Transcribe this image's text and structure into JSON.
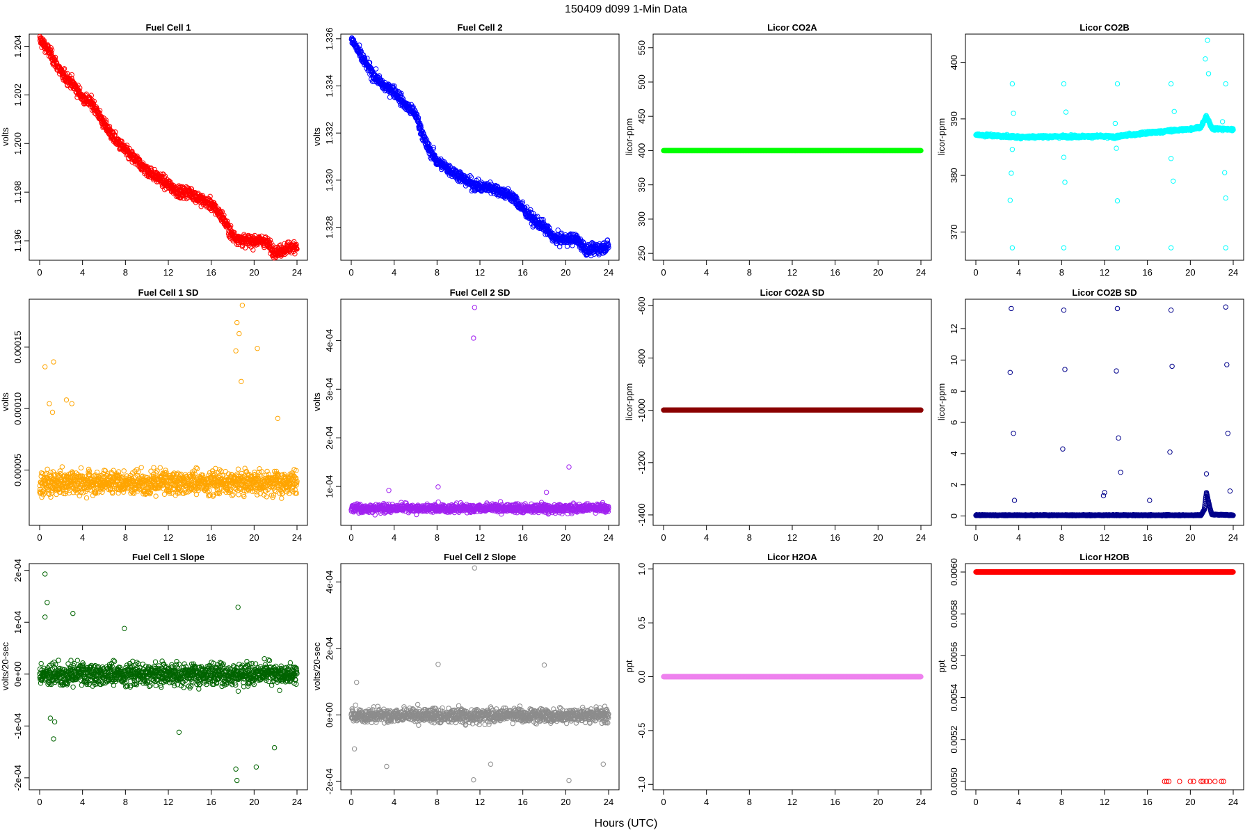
{
  "figure": {
    "suptitle": "150409    d099    1-Min Data",
    "xlabel": "Hours (UTC)"
  },
  "chart_data": [
    {
      "id": "fc1",
      "type": "scatter",
      "title": "Fuel Cell 1",
      "ylabel": "volts",
      "color": "#ff0000",
      "xlim": [
        0,
        24
      ],
      "ylim": [
        1.1952,
        1.2045
      ],
      "yticks": [
        1.196,
        1.198,
        1.2,
        1.202,
        1.204
      ],
      "ytick_labels": [
        "1.196",
        "1.198",
        "1.200",
        "1.202",
        "1.204"
      ],
      "series": [
        {
          "pattern": "trend",
          "x": [
            0,
            1,
            2,
            3,
            4,
            5,
            6,
            7,
            8,
            9,
            10,
            11,
            12,
            13,
            14,
            15,
            16,
            17,
            18,
            19,
            20,
            21,
            22,
            23,
            24
          ],
          "y": [
            1.2043,
            1.2037,
            1.2029,
            1.2025,
            1.2019,
            1.2016,
            1.2008,
            1.2002,
            1.1997,
            1.1993,
            1.1989,
            1.1986,
            1.1983,
            1.198,
            1.198,
            1.1977,
            1.1975,
            1.197,
            1.1962,
            1.196,
            1.196,
            1.196,
            1.1955,
            1.1957,
            1.1958
          ],
          "jitter": 0.00025
        }
      ]
    },
    {
      "id": "fc2",
      "type": "scatter",
      "title": "Fuel Cell 2",
      "ylabel": "volts",
      "color": "#0000ff",
      "xlim": [
        0,
        24
      ],
      "ylim": [
        1.3266,
        1.3362
      ],
      "yticks": [
        1.328,
        1.33,
        1.332,
        1.334,
        1.336
      ],
      "ytick_labels": [
        "1.328",
        "1.330",
        "1.332",
        "1.334",
        "1.336"
      ],
      "series": [
        {
          "pattern": "trend",
          "x": [
            0,
            1,
            2,
            3,
            4,
            5,
            6,
            7,
            8,
            9,
            10,
            11,
            12,
            13,
            14,
            15,
            16,
            17,
            18,
            19,
            20,
            21,
            22,
            23,
            24
          ],
          "y": [
            1.336,
            1.3352,
            1.3345,
            1.334,
            1.3338,
            1.3332,
            1.3328,
            1.3315,
            1.3308,
            1.3305,
            1.3302,
            1.3299,
            1.3297,
            1.3297,
            1.3295,
            1.3293,
            1.3288,
            1.3283,
            1.328,
            1.3275,
            1.3275,
            1.3275,
            1.327,
            1.3271,
            1.3272
          ],
          "jitter": 0.00025
        }
      ]
    },
    {
      "id": "co2a",
      "type": "scatter",
      "title": "Licor CO2A",
      "ylabel": "licor-ppm",
      "color": "#00ff00",
      "xlim": [
        0,
        24
      ],
      "ylim": [
        240,
        570
      ],
      "yticks": [
        250,
        300,
        350,
        400,
        450,
        500,
        550
      ],
      "ytick_labels": [
        "250",
        "300",
        "350",
        "400",
        "450",
        "500",
        "550"
      ],
      "series": [
        {
          "pattern": "flat",
          "value": 400
        }
      ]
    },
    {
      "id": "co2b",
      "type": "scatter",
      "title": "Licor CO2B",
      "ylabel": "licor-ppm",
      "color": "#00ffff",
      "xlim": [
        0,
        24
      ],
      "ylim": [
        365,
        405
      ],
      "yticks": [
        370,
        380,
        390,
        400
      ],
      "ytick_labels": [
        "370",
        "380",
        "390",
        "400"
      ],
      "series": [
        {
          "pattern": "trend",
          "x": [
            0,
            4,
            8,
            12,
            13,
            14,
            16,
            18,
            20,
            21,
            21.5,
            22,
            24
          ],
          "y": [
            387.2,
            386.8,
            386.9,
            386.9,
            386.8,
            387.1,
            387.5,
            387.9,
            388.2,
            388.6,
            390.5,
            388.3,
            388.1
          ],
          "jitter": 0.25
        },
        {
          "pattern": "points",
          "x": [
            3.4,
            3.4,
            3.4,
            3.3,
            3.2,
            3.5,
            8.2,
            8.2,
            8.2,
            8.3,
            8.4,
            13.2,
            13.2,
            13.2,
            13.0,
            13.1,
            18.2,
            18.2,
            18.2,
            18.4,
            18.5,
            23.3,
            23.3,
            23.3,
            23.2,
            23.0,
            21.6,
            21.7,
            21.4
          ],
          "y": [
            396.2,
            384.6,
            367.2,
            380.4,
            375.6,
            391.0,
            396.2,
            367.2,
            383.2,
            378.8,
            391.2,
            396.2,
            367.2,
            375.5,
            389.2,
            384.8,
            396.2,
            367.2,
            383.0,
            379.0,
            391.3,
            396.2,
            367.2,
            376.0,
            380.5,
            389.5,
            403.9,
            398.0,
            400.6
          ]
        }
      ]
    },
    {
      "id": "fc1sd",
      "type": "scatter",
      "title": "Fuel Cell 1 SD",
      "ylabel": "volts",
      "color": "#ffa500",
      "xlim": [
        0,
        24
      ],
      "ylim": [
        5e-06,
        0.000189
      ],
      "yticks": [
        5e-05,
        0.0001,
        0.00015
      ],
      "ytick_labels": [
        "0.00005",
        "0.00010",
        "0.00015"
      ],
      "series": [
        {
          "pattern": "noise",
          "base": 4e-05,
          "jitter": 1e-05
        },
        {
          "pattern": "points",
          "x": [
            0.5,
            1.3,
            0.9,
            3.0,
            2.5,
            1.2,
            18.9,
            18.4,
            18.6,
            20.3,
            18.3,
            18.8,
            22.2
          ],
          "y": [
            0.000134,
            0.000138,
            0.000104,
            0.000104,
            0.000107,
            9.7e-05,
            0.000184,
            0.00017,
            0.000161,
            0.000149,
            0.000147,
            0.000122,
            9.2e-05
          ]
        }
      ]
    },
    {
      "id": "fc2sd",
      "type": "scatter",
      "title": "Fuel Cell 2 SD",
      "ylabel": "volts",
      "color": "#a020f0",
      "xlim": [
        0,
        24
      ],
      "ylim": [
        2e-05,
        0.000485
      ],
      "yticks": [
        0.0001,
        0.0002,
        0.0003,
        0.0004
      ],
      "ytick_labels": [
        "1e-04",
        "2e-04",
        "3e-04",
        "4e-04"
      ],
      "series": [
        {
          "pattern": "noise",
          "base": 5.5e-05,
          "jitter": 9e-06
        },
        {
          "pattern": "points",
          "x": [
            11.5,
            11.4,
            20.3,
            8.1,
            3.5,
            18.2
          ],
          "y": [
            0.000468,
            0.000405,
            0.00014,
            9.9e-05,
            9.2e-05,
            8.8e-05
          ]
        }
      ]
    },
    {
      "id": "co2asd",
      "type": "scatter",
      "title": "Licor CO2A SD",
      "ylabel": "licor-ppm",
      "color": "#8b0000",
      "xlim": [
        0,
        24
      ],
      "ylim": [
        -1440,
        -575
      ],
      "yticks": [
        -1400,
        -1200,
        -1000,
        -800,
        -600
      ],
      "ytick_labels": [
        "-1400",
        "-1200",
        "-1000",
        "-800",
        "-600"
      ],
      "series": [
        {
          "pattern": "flat",
          "value": -999
        }
      ]
    },
    {
      "id": "co2bsd",
      "type": "scatter",
      "title": "Licor CO2B SD",
      "ylabel": "licor-ppm",
      "color": "#00008b",
      "xlim": [
        0,
        24
      ],
      "ylim": [
        -0.6,
        13.9
      ],
      "yticks": [
        0,
        2,
        4,
        6,
        8,
        10,
        12
      ],
      "ytick_labels": [
        "0",
        "2",
        "4",
        "6",
        "8",
        "10",
        "12"
      ],
      "series": [
        {
          "pattern": "trend",
          "x": [
            0,
            21,
            21.3,
            21.5,
            21.8,
            22,
            24
          ],
          "y": [
            0.05,
            0.05,
            0.4,
            1.5,
            0.6,
            0.1,
            0.05
          ],
          "jitter": 0.03
        },
        {
          "pattern": "points",
          "x": [
            3.3,
            3.2,
            3.5,
            3.6,
            8.2,
            8.3,
            8.1,
            13.2,
            13.1,
            13.3,
            13.5,
            18.2,
            18.3,
            18.1,
            23.3,
            23.4,
            23.5,
            23.7,
            12.0,
            11.9,
            16.2,
            21.5
          ],
          "y": [
            13.3,
            9.2,
            5.3,
            1.0,
            13.2,
            9.4,
            4.3,
            13.3,
            9.3,
            5.0,
            2.8,
            13.2,
            9.6,
            4.1,
            13.4,
            9.7,
            5.3,
            1.6,
            1.5,
            1.3,
            1.0,
            2.7
          ]
        }
      ]
    },
    {
      "id": "fc1slope",
      "type": "scatter",
      "title": "Fuel Cell 1 Slope",
      "ylabel": "volts/20-sec",
      "color": "#006400",
      "xlim": [
        0,
        24
      ],
      "ylim": [
        -0.000223,
        0.000213
      ],
      "yticks": [
        -0.0002,
        -0.0001,
        0,
        0.0001,
        0.0002
      ],
      "ytick_labels": [
        "-2e-04",
        "-1e-04",
        "0e+00",
        "1e-04",
        "2e-04"
      ],
      "series": [
        {
          "pattern": "noise",
          "base": 0,
          "jitter": 2.2e-05
        },
        {
          "pattern": "points",
          "x": [
            0.5,
            0.7,
            0.5,
            3.1,
            7.9,
            18.5,
            18.3,
            18.4,
            20.2,
            13.0,
            1.3,
            21.9,
            1.0,
            1.4
          ],
          "y": [
            0.000193,
            0.000138,
            0.00011,
            0.000117,
            8.8e-05,
            0.000129,
            -0.000183,
            -0.000205,
            -0.000179,
            -0.000112,
            -0.000125,
            -0.000142,
            -8.5e-05,
            -9.2e-05
          ]
        }
      ]
    },
    {
      "id": "fc2slope",
      "type": "scatter",
      "title": "Fuel Cell 2 Slope",
      "ylabel": "volts/20-sec",
      "color": "#8c8c8c",
      "xlim": [
        0,
        24
      ],
      "ylim": [
        -0.000225,
        0.000455
      ],
      "yticks": [
        -0.0002,
        0,
        0.0002,
        0.0004
      ],
      "ytick_labels": [
        "-2e-04",
        "0e+00",
        "2e-04",
        "4e-04"
      ],
      "series": [
        {
          "pattern": "noise",
          "base": -2e-06,
          "jitter": 2.2e-05
        },
        {
          "pattern": "points",
          "x": [
            11.5,
            8.1,
            18.0,
            0.5,
            3.3,
            11.4,
            20.3,
            23.5,
            0.3,
            13.0
          ],
          "y": [
            0.000442,
            0.000152,
            0.00015,
            9.8e-05,
            -0.000155,
            -0.000195,
            -0.000197,
            -0.000148,
            -0.000102,
            -0.000148
          ]
        }
      ]
    },
    {
      "id": "h2oa",
      "type": "scatter",
      "title": "Licor H2OA",
      "ylabel": "ppt",
      "color": "#ee82ee",
      "xlim": [
        0,
        24
      ],
      "ylim": [
        -1.05,
        1.05
      ],
      "yticks": [
        -1,
        -0.5,
        0,
        0.5,
        1
      ],
      "ytick_labels": [
        "-1.0",
        "-0.5",
        "0.0",
        "0.5",
        "1.0"
      ],
      "series": [
        {
          "pattern": "flat",
          "value": 0
        }
      ]
    },
    {
      "id": "h2ob",
      "type": "scatter",
      "title": "Licor H2OB",
      "ylabel": "ppt",
      "color": "#ff0000",
      "xlim": [
        0,
        24
      ],
      "ylim": [
        0.00496,
        0.00604
      ],
      "yticks": [
        0.005,
        0.0052,
        0.0054,
        0.0056,
        0.0058,
        0.006
      ],
      "ytick_labels": [
        "0.0050",
        "0.0052",
        "0.0054",
        "0.0056",
        "0.0058",
        "0.0060"
      ],
      "series": [
        {
          "pattern": "flat",
          "value": 0.006
        },
        {
          "pattern": "points",
          "x": [
            17.6,
            17.8,
            18.0,
            19.0,
            20.0,
            20.3,
            21.0,
            21.2,
            21.5,
            21.8,
            22.3,
            22.9,
            23.1
          ],
          "y": [
            0.005,
            0.005,
            0.005,
            0.005,
            0.005,
            0.005,
            0.005,
            0.005,
            0.005,
            0.005,
            0.005,
            0.005,
            0.005
          ]
        }
      ]
    }
  ],
  "xticks": [
    0,
    4,
    8,
    12,
    16,
    20,
    24
  ]
}
